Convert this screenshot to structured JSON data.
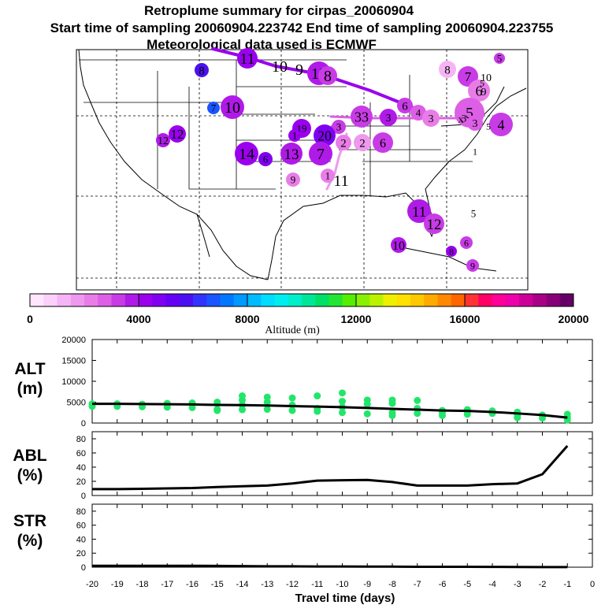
{
  "title": {
    "line1": "Retroplume summary for cirpas_20060904",
    "line2": "Start time of sampling 20060904.223742     End time of sampling 20060904.223755",
    "line3": "Meteorological data used is ECMWF"
  },
  "map": {
    "release_point_label": "X",
    "clusters": [
      {
        "n": "11",
        "alt": 4300
      },
      {
        "n": "10",
        "alt": 0
      },
      {
        "n": "9",
        "alt": 0
      },
      {
        "n": "15",
        "alt": 3600
      },
      {
        "n": "8",
        "alt": 3200
      },
      {
        "n": "8",
        "alt": 5800
      },
      {
        "n": "8",
        "alt": 1400
      },
      {
        "n": "5",
        "alt": 3200
      },
      {
        "n": "7",
        "alt": 3200
      },
      {
        "n": "10",
        "alt": 1000
      },
      {
        "n": "6",
        "alt": 2000
      },
      {
        "n": "9",
        "alt": 1500
      },
      {
        "n": "7",
        "alt": 6600
      },
      {
        "n": "10",
        "alt": 3600
      },
      {
        "n": "6",
        "alt": 3300
      },
      {
        "n": "4",
        "alt": 2800
      },
      {
        "n": "3",
        "alt": 2400
      },
      {
        "n": "5",
        "alt": 2800
      },
      {
        "n": "3",
        "alt": 3400
      },
      {
        "n": "3",
        "alt": 2700
      },
      {
        "n": "4",
        "alt": 3000
      },
      {
        "n": "1",
        "alt": 0
      },
      {
        "n": "33",
        "alt": 3300
      },
      {
        "n": "3",
        "alt": 3700
      },
      {
        "n": "3",
        "alt": 3300
      },
      {
        "n": "19",
        "alt": 4400
      },
      {
        "n": "1",
        "alt": 4100
      },
      {
        "n": "20",
        "alt": 4700
      },
      {
        "n": "13",
        "alt": 3800
      },
      {
        "n": "7",
        "alt": 3800
      },
      {
        "n": "2",
        "alt": 2000
      },
      {
        "n": "2",
        "alt": 1800
      },
      {
        "n": "6",
        "alt": 3200
      },
      {
        "n": "12",
        "alt": 3600
      },
      {
        "n": "12",
        "alt": 4000
      },
      {
        "n": "14",
        "alt": 4300
      },
      {
        "n": "6",
        "alt": 4500
      },
      {
        "n": "9",
        "alt": 2200
      },
      {
        "n": "1",
        "alt": 2000
      },
      {
        "n": "11",
        "alt": 800
      },
      {
        "n": "11",
        "alt": 3700
      },
      {
        "n": "12",
        "alt": 3400
      },
      {
        "n": "5",
        "alt": 0
      },
      {
        "n": "10",
        "alt": 3600
      },
      {
        "n": "6",
        "alt": 3000
      },
      {
        "n": "8",
        "alt": 4100
      },
      {
        "n": "9",
        "alt": 3000
      },
      {
        "n": "5",
        "alt": 0
      },
      {
        "n": "5",
        "alt": 0
      }
    ]
  },
  "colorbar": {
    "xlabel": "Altitude (m)",
    "tick_labels": [
      "0",
      "4000",
      "8000",
      "12000",
      "16000",
      "20000"
    ],
    "range": [
      0,
      20000
    ],
    "colors": [
      "#ffe6ff",
      "#fbd0fb",
      "#f5b5f5",
      "#ee99ee",
      "#e87de8",
      "#dc5fe6",
      "#c83ce6",
      "#b01ae8",
      "#9a00ee",
      "#8000f2",
      "#6600f5",
      "#4c10f0",
      "#3333ff",
      "#1a55ff",
      "#0077ff",
      "#0099ff",
      "#00bbff",
      "#00ddff",
      "#00eeee",
      "#00eecc",
      "#00e699",
      "#00e066",
      "#22e633",
      "#55ee00",
      "#88f000",
      "#bbf200",
      "#eef000",
      "#ffe000",
      "#ffc800",
      "#ffaa00",
      "#ff8800",
      "#ff6600",
      "#ff3333",
      "#ff0066",
      "#ff0099",
      "#ee00aa",
      "#cc0099",
      "#aa0088",
      "#880077",
      "#660066"
    ]
  },
  "chart_data": [
    {
      "type": "line",
      "ylabel": "ALT\n(m)",
      "ylabel_lines": [
        "ALT",
        "(m)"
      ],
      "x": [
        -20,
        -19,
        -18,
        -17,
        -16,
        -15,
        -14,
        -13,
        -12,
        -11,
        -10,
        -9,
        -8,
        -7,
        -6,
        -5,
        -4,
        -3,
        -2,
        -1
      ],
      "values": [
        4600,
        4600,
        4550,
        4500,
        4450,
        4350,
        4300,
        4200,
        4050,
        3950,
        3800,
        3600,
        3400,
        3200,
        3000,
        2900,
        2650,
        2300,
        1900,
        1300
      ],
      "ylim": [
        0,
        20000
      ],
      "yticks": [
        "0",
        "5000",
        "10000",
        "15000",
        "20000"
      ],
      "points": [
        [
          -20,
          4600
        ],
        [
          -20,
          4000
        ],
        [
          -19,
          4600
        ],
        [
          -19,
          4000
        ],
        [
          -18,
          4500
        ],
        [
          -18,
          3900
        ],
        [
          -17,
          4700
        ],
        [
          -17,
          3800
        ],
        [
          -16,
          4800
        ],
        [
          -16,
          3700
        ],
        [
          -15,
          5000
        ],
        [
          -15,
          3300
        ],
        [
          -15,
          3000
        ],
        [
          -14,
          6500
        ],
        [
          -14,
          5500
        ],
        [
          -14,
          4300
        ],
        [
          -14,
          3200
        ],
        [
          -13,
          6200
        ],
        [
          -13,
          5000
        ],
        [
          -13,
          3300
        ],
        [
          -12,
          6000
        ],
        [
          -12,
          4300
        ],
        [
          -12,
          3000
        ],
        [
          -11,
          6500
        ],
        [
          -11,
          3500
        ],
        [
          -11,
          2800
        ],
        [
          -10,
          7200
        ],
        [
          -10,
          5200
        ],
        [
          -10,
          3800
        ],
        [
          -10,
          2500
        ],
        [
          -9,
          5500
        ],
        [
          -9,
          4500
        ],
        [
          -9,
          2200
        ],
        [
          -8,
          5500
        ],
        [
          -8,
          4700
        ],
        [
          -8,
          2500
        ],
        [
          -8,
          1800
        ],
        [
          -7,
          5400
        ],
        [
          -7,
          3500
        ],
        [
          -7,
          2300
        ],
        [
          -6,
          3000
        ],
        [
          -6,
          2500
        ],
        [
          -6,
          1800
        ],
        [
          -5,
          3200
        ],
        [
          -5,
          2800
        ],
        [
          -5,
          2100
        ],
        [
          -4,
          2900
        ],
        [
          -4,
          2300
        ],
        [
          -3,
          2600
        ],
        [
          -3,
          1900
        ],
        [
          -3,
          1300
        ],
        [
          -2,
          1900
        ],
        [
          -2,
          1200
        ],
        [
          -1,
          2100
        ],
        [
          -1,
          1300
        ],
        [
          -1,
          700
        ]
      ]
    },
    {
      "type": "line",
      "ylabel": "ABL\n(%)",
      "ylabel_lines": [
        "ABL",
        "(%)"
      ],
      "x": [
        -20,
        -19,
        -18,
        -17,
        -16,
        -15,
        -14,
        -13,
        -12,
        -11,
        -10,
        -9,
        -8,
        -7,
        -6,
        -5,
        -4,
        -3,
        -2,
        -1
      ],
      "values": [
        9,
        9,
        9.5,
        10,
        10.5,
        12,
        13,
        14,
        17,
        21,
        21.5,
        22,
        19,
        14,
        14,
        14,
        16,
        17,
        30,
        70
      ],
      "ylim": [
        0,
        90
      ],
      "yticks": [
        "0",
        "20",
        "40",
        "60",
        "80"
      ]
    },
    {
      "type": "line",
      "ylabel": "STR\n(%)",
      "ylabel_lines": [
        "STR",
        "(%)"
      ],
      "x": [
        -20,
        -19,
        -18,
        -17,
        -16,
        -15,
        -14,
        -13,
        -12,
        -11,
        -10,
        -9,
        -8,
        -7,
        -6,
        -5,
        -4,
        -3,
        -2,
        -1
      ],
      "values": [
        2,
        2,
        2,
        2,
        2,
        1.8,
        1.5,
        1.3,
        1.2,
        1,
        1,
        0.8,
        0.8,
        0.6,
        0.5,
        0.5,
        0.4,
        0.3,
        0.2,
        0.1
      ],
      "ylim": [
        0,
        90
      ],
      "yticks": [
        "0",
        "20",
        "40",
        "60",
        "80"
      ]
    }
  ],
  "xaxis": {
    "xlabel": "Travel time (days)",
    "xlim": [
      -20,
      0
    ],
    "tick_labels": [
      "-20",
      "-19",
      "-18",
      "-17",
      "-16",
      "-15",
      "-14",
      "-13",
      "-12",
      "-11",
      "-10",
      "-9",
      "-8",
      "-7",
      "-6",
      "-5",
      "-4",
      "-3",
      "-2",
      "-1",
      "0"
    ]
  }
}
